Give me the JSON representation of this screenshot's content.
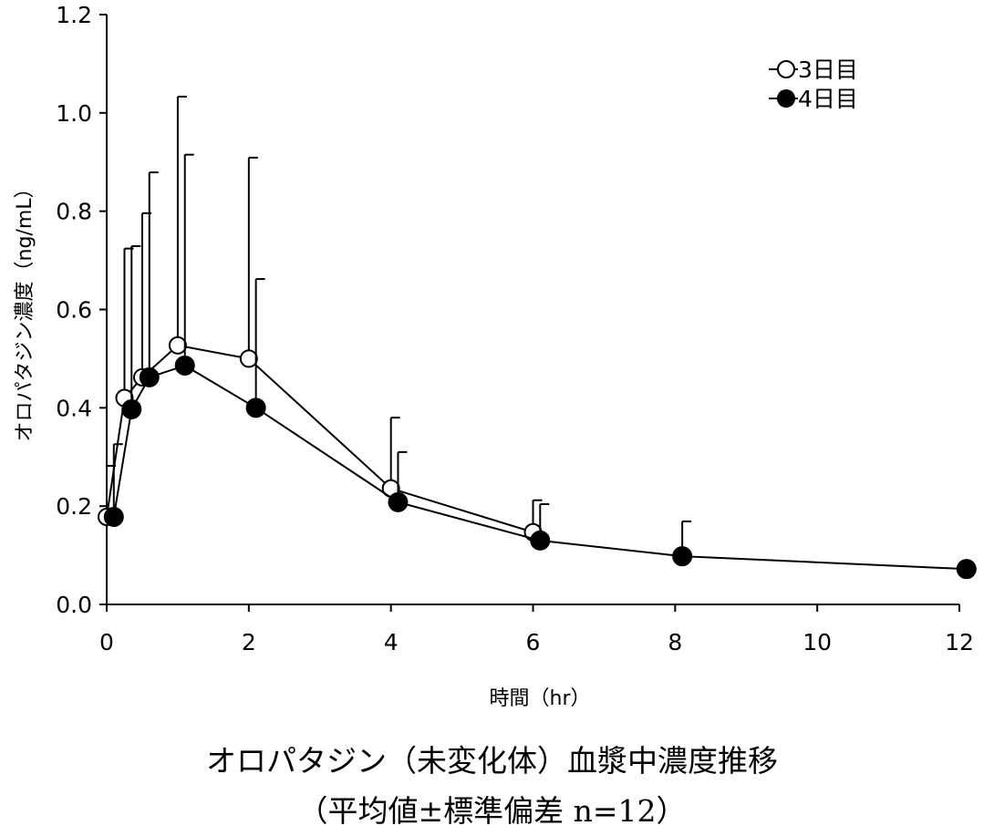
{
  "chart_data": {
    "type": "line",
    "title": "オロパタジン（未変化体）血漿中濃度推移",
    "subtitle": "（平均値±標準偏差 n=12）",
    "xlabel": "時間（hr）",
    "ylabel": "オロパタジン濃度（ng/mL）",
    "xlim": [
      0,
      12
    ],
    "ylim": [
      0,
      1.2
    ],
    "xticks": [
      "0",
      "2",
      "4",
      "6",
      "8",
      "10",
      "12"
    ],
    "yticks": [
      "0.0",
      "0.2",
      "0.4",
      "0.6",
      "0.8",
      "1.0",
      "1.2"
    ],
    "grid": false,
    "legend_position": "top-right",
    "error_bars": "mean + SD (upper only)",
    "series": [
      {
        "name": "3日目",
        "marker": "open-circle",
        "x": [
          0,
          0.25,
          0.5,
          1,
          2,
          4,
          6
        ],
        "y": [
          0.178,
          0.42,
          0.462,
          0.527,
          0.5,
          0.236,
          0.147
        ],
        "upper": [
          0.282,
          0.724,
          0.796,
          1.033,
          0.909,
          0.38,
          0.212
        ]
      },
      {
        "name": "4日目",
        "marker": "filled-circle",
        "x": [
          0.1,
          0.35,
          0.6,
          1.1,
          2.1,
          4.1,
          6.1,
          8.1,
          12.1
        ],
        "y": [
          0.178,
          0.397,
          0.462,
          0.486,
          0.4,
          0.208,
          0.13,
          0.098,
          0.072
        ],
        "upper": [
          0.326,
          0.729,
          0.879,
          0.915,
          0.662,
          0.31,
          0.204,
          0.169,
          null
        ]
      }
    ]
  }
}
